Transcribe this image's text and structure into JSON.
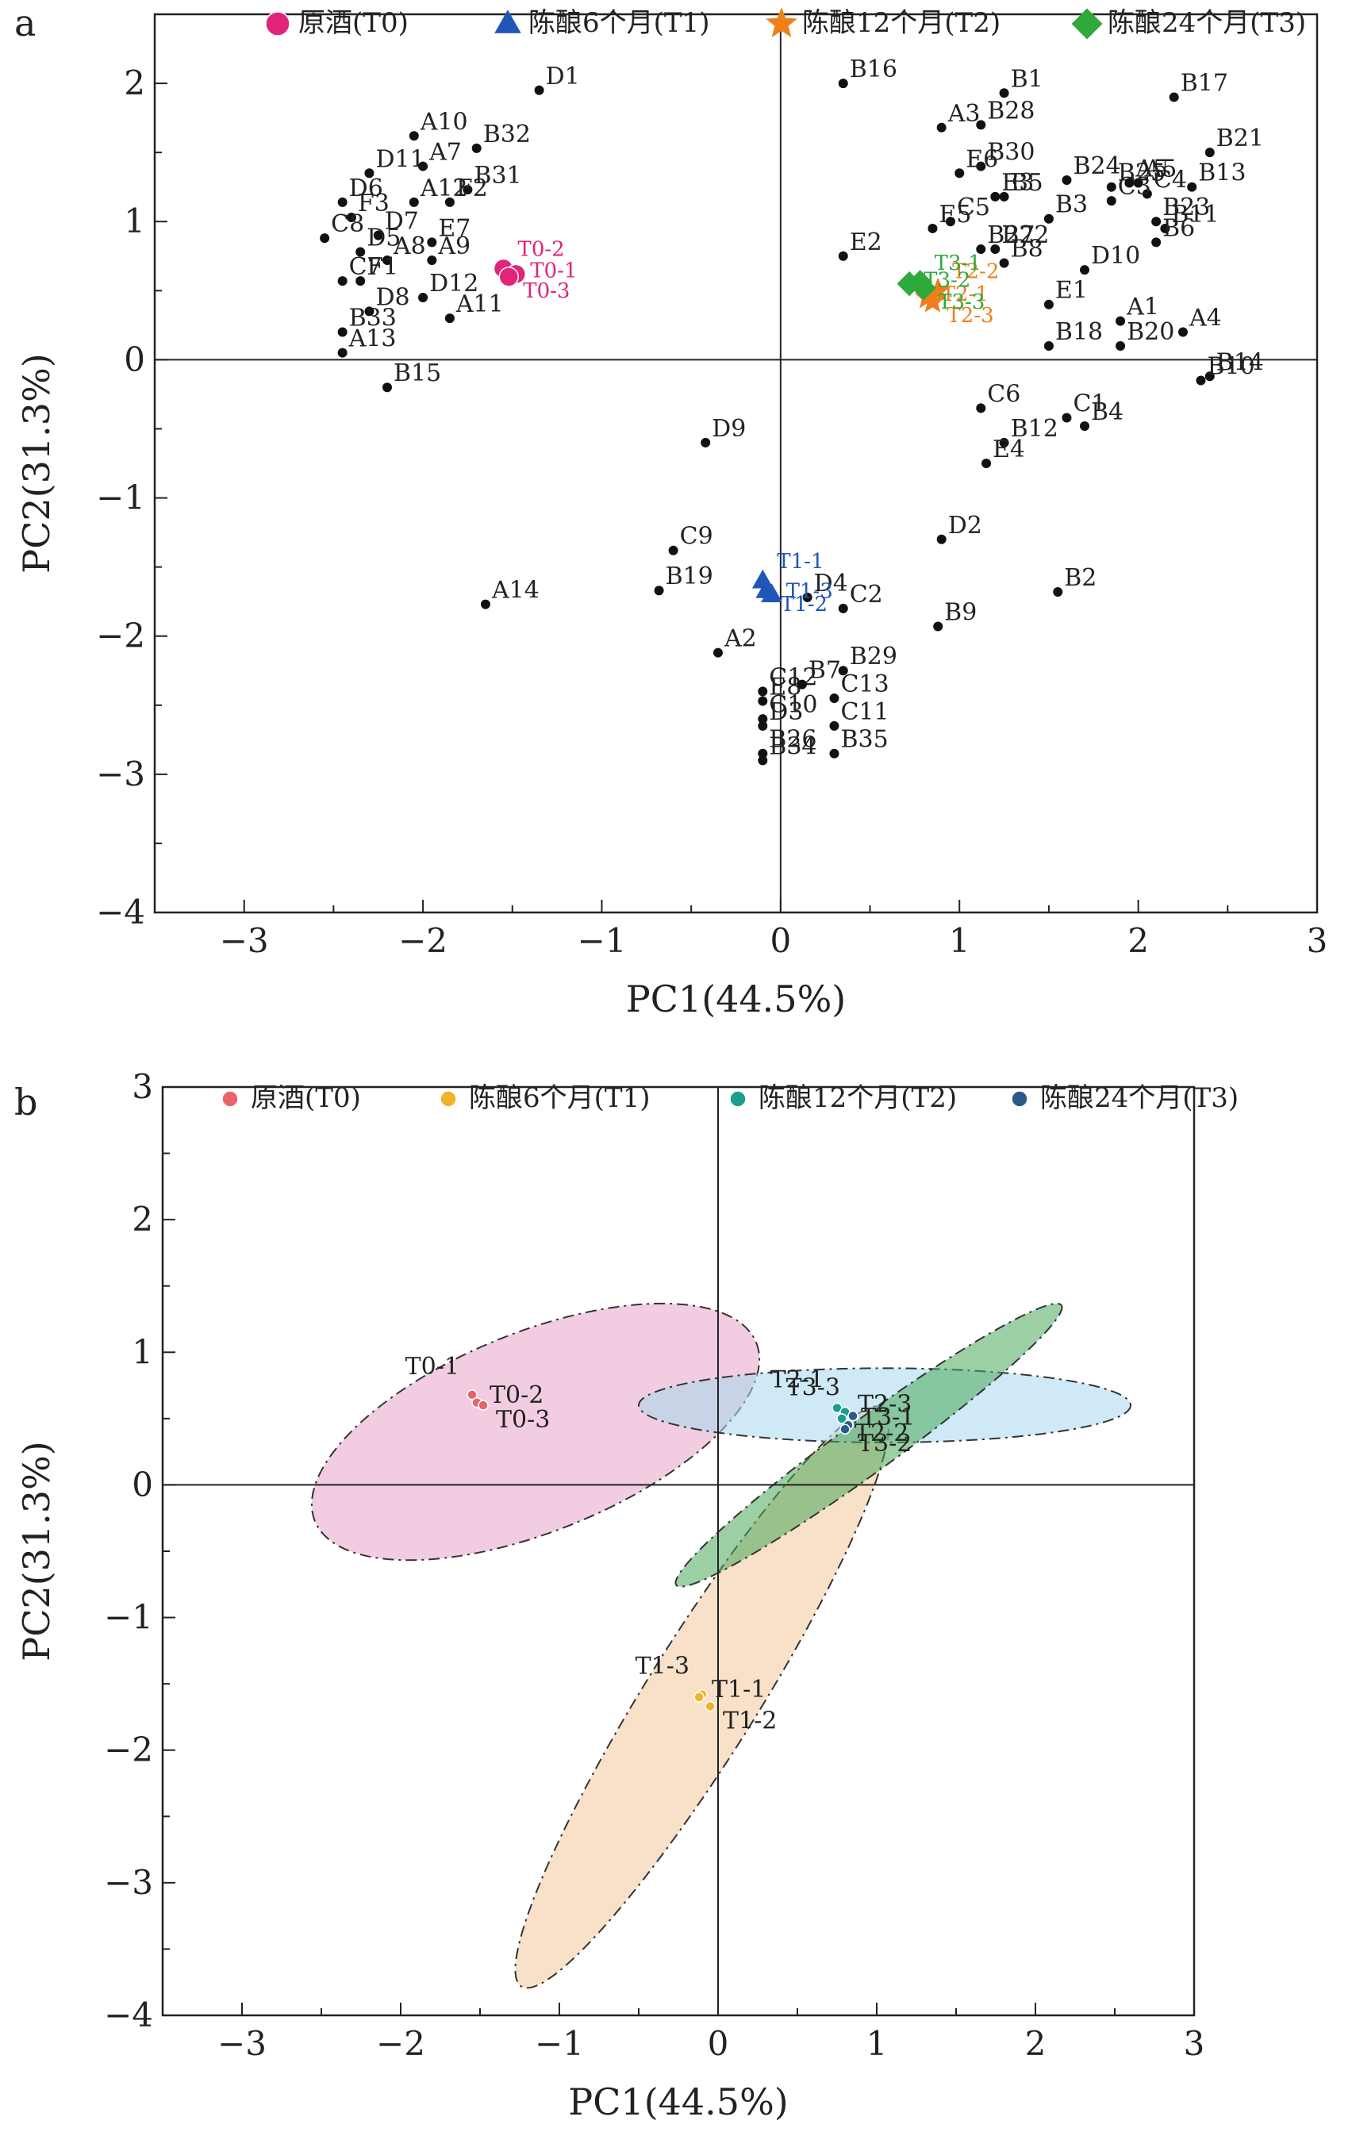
{
  "chart_data": [
    {
      "type": "scatter",
      "panel": "a",
      "xlabel": "PC1(44.5%)",
      "ylabel": "PC2(31.3%)",
      "xlim": [
        -3.5,
        3
      ],
      "ylim": [
        -4,
        2.5
      ],
      "xticks": [
        -3,
        -2,
        -1,
        0,
        1,
        2,
        3
      ],
      "yticks": [
        -4,
        -3,
        -2,
        -1,
        0,
        1,
        2
      ],
      "xtick_labels": [
        "−3",
        "−2",
        "−1",
        "0",
        "1",
        "2",
        "3"
      ],
      "ytick_labels": [
        "−4",
        "−3",
        "−2",
        "−1",
        "0",
        "1",
        "2"
      ],
      "legend": [
        {
          "label": "原酒(T0)",
          "marker": "circle",
          "color": "#e0247a"
        },
        {
          "label": "陈酿6个月(T1)",
          "marker": "triangle",
          "color": "#2156b8"
        },
        {
          "label": "陈酿12个月(T2)",
          "marker": "star",
          "color": "#f07f1a"
        },
        {
          "label": "陈酿24个月(T3)",
          "marker": "diamond",
          "color": "#2eaa3c"
        }
      ],
      "legend_position": "top",
      "variables": [
        {
          "label": "D1",
          "x": -1.35,
          "y": 1.95
        },
        {
          "label": "A10",
          "x": -2.05,
          "y": 1.62
        },
        {
          "label": "A7",
          "x": -2.0,
          "y": 1.4
        },
        {
          "label": "B32",
          "x": -1.7,
          "y": 1.53
        },
        {
          "label": "D11",
          "x": -2.3,
          "y": 1.35
        },
        {
          "label": "B31",
          "x": -1.75,
          "y": 1.23
        },
        {
          "label": "D6",
          "x": -2.45,
          "y": 1.14
        },
        {
          "label": "A12",
          "x": -2.05,
          "y": 1.14
        },
        {
          "label": "F2",
          "x": -1.85,
          "y": 1.14
        },
        {
          "label": "F3",
          "x": -2.4,
          "y": 1.03
        },
        {
          "label": "D7",
          "x": -2.25,
          "y": 0.9
        },
        {
          "label": "E7",
          "x": -1.95,
          "y": 0.85
        },
        {
          "label": "C8",
          "x": -2.55,
          "y": 0.88
        },
        {
          "label": "D5",
          "x": -2.35,
          "y": 0.78
        },
        {
          "label": "A8",
          "x": -2.2,
          "y": 0.72
        },
        {
          "label": "A9",
          "x": -1.95,
          "y": 0.72
        },
        {
          "label": "C7",
          "x": -2.45,
          "y": 0.57
        },
        {
          "label": "F1",
          "x": -2.35,
          "y": 0.57
        },
        {
          "label": "D12",
          "x": -2.0,
          "y": 0.45
        },
        {
          "label": "D8",
          "x": -2.3,
          "y": 0.35
        },
        {
          "label": "A11",
          "x": -1.85,
          "y": 0.3
        },
        {
          "label": "B33",
          "x": -2.45,
          "y": 0.2
        },
        {
          "label": "A13",
          "x": -2.45,
          "y": 0.05
        },
        {
          "label": "B15",
          "x": -2.2,
          "y": -0.2
        },
        {
          "label": "D9",
          "x": -0.42,
          "y": -0.6
        },
        {
          "label": "C9",
          "x": -0.6,
          "y": -1.38
        },
        {
          "label": "B19",
          "x": -0.68,
          "y": -1.67
        },
        {
          "label": "A14",
          "x": -1.65,
          "y": -1.77
        },
        {
          "label": "A2",
          "x": -0.35,
          "y": -2.12
        },
        {
          "label": "C12",
          "x": -0.1,
          "y": -2.4
        },
        {
          "label": "E8",
          "x": -0.1,
          "y": -2.47
        },
        {
          "label": "C10",
          "x": -0.1,
          "y": -2.6
        },
        {
          "label": "D3",
          "x": -0.1,
          "y": -2.65
        },
        {
          "label": "B26",
          "x": -0.1,
          "y": -2.85
        },
        {
          "label": "B34",
          "x": -0.1,
          "y": -2.9
        },
        {
          "label": "D4",
          "x": 0.15,
          "y": -1.72
        },
        {
          "label": "C2",
          "x": 0.35,
          "y": -1.8
        },
        {
          "label": "B7",
          "x": 0.12,
          "y": -2.35
        },
        {
          "label": "B29",
          "x": 0.35,
          "y": -2.25
        },
        {
          "label": "C13",
          "x": 0.3,
          "y": -2.45
        },
        {
          "label": "C11",
          "x": 0.3,
          "y": -2.65
        },
        {
          "label": "B35",
          "x": 0.3,
          "y": -2.85
        },
        {
          "label": "B16",
          "x": 0.35,
          "y": 2.0
        },
        {
          "label": "A3",
          "x": 0.9,
          "y": 1.68
        },
        {
          "label": "B1",
          "x": 1.25,
          "y": 1.93
        },
        {
          "label": "B28",
          "x": 1.12,
          "y": 1.7
        },
        {
          "label": "B30",
          "x": 1.12,
          "y": 1.4
        },
        {
          "label": "E6",
          "x": 1.0,
          "y": 1.35
        },
        {
          "label": "B24",
          "x": 1.6,
          "y": 1.3
        },
        {
          "label": "B25",
          "x": 1.85,
          "y": 1.25
        },
        {
          "label": "A5",
          "x": 1.95,
          "y": 1.28
        },
        {
          "label": "B21",
          "x": 2.4,
          "y": 1.5
        },
        {
          "label": "B17",
          "x": 2.2,
          "y": 1.9
        },
        {
          "label": "A5",
          "x": 2.0,
          "y": 1.28
        },
        {
          "label": "C4",
          "x": 2.05,
          "y": 1.2
        },
        {
          "label": "B13",
          "x": 2.3,
          "y": 1.25
        },
        {
          "label": "E3",
          "x": 1.2,
          "y": 1.18
        },
        {
          "label": "B5",
          "x": 1.25,
          "y": 1.18
        },
        {
          "label": "B3",
          "x": 1.5,
          "y": 1.02
        },
        {
          "label": "C3",
          "x": 1.85,
          "y": 1.15
        },
        {
          "label": "B23",
          "x": 2.1,
          "y": 1.0
        },
        {
          "label": "B11",
          "x": 2.15,
          "y": 0.95
        },
        {
          "label": "E5",
          "x": 0.85,
          "y": 0.95
        },
        {
          "label": "C5",
          "x": 0.95,
          "y": 1.0
        },
        {
          "label": "B22",
          "x": 1.2,
          "y": 0.8
        },
        {
          "label": "B6",
          "x": 2.1,
          "y": 0.85
        },
        {
          "label": "E2",
          "x": 0.35,
          "y": 0.75
        },
        {
          "label": "B27",
          "x": 1.12,
          "y": 0.8
        },
        {
          "label": "B8",
          "x": 1.25,
          "y": 0.7
        },
        {
          "label": "D10",
          "x": 1.7,
          "y": 0.65
        },
        {
          "label": "E1",
          "x": 1.5,
          "y": 0.4
        },
        {
          "label": "A1",
          "x": 1.9,
          "y": 0.28
        },
        {
          "label": "A4",
          "x": 2.25,
          "y": 0.2
        },
        {
          "label": "B20",
          "x": 1.9,
          "y": 0.1
        },
        {
          "label": "B18",
          "x": 1.5,
          "y": 0.1
        },
        {
          "label": "B14",
          "x": 2.4,
          "y": -0.12
        },
        {
          "label": "B10",
          "x": 2.35,
          "y": -0.15
        },
        {
          "label": "C6",
          "x": 1.12,
          "y": -0.35
        },
        {
          "label": "B12",
          "x": 1.25,
          "y": -0.6
        },
        {
          "label": "B4",
          "x": 1.7,
          "y": -0.48
        },
        {
          "label": "E4",
          "x": 1.15,
          "y": -0.75
        },
        {
          "label": "C1",
          "x": 1.6,
          "y": -0.42
        },
        {
          "label": "D2",
          "x": 0.9,
          "y": -1.3
        },
        {
          "label": "B2",
          "x": 1.55,
          "y": -1.68
        },
        {
          "label": "B9",
          "x": 0.88,
          "y": -1.93
        }
      ],
      "samples": [
        {
          "label": "T0-2",
          "group": 0,
          "x": -1.55,
          "y": 0.66
        },
        {
          "label": "T0-1",
          "group": 0,
          "x": -1.48,
          "y": 0.62
        },
        {
          "label": "T0-3",
          "group": 0,
          "x": -1.52,
          "y": 0.6
        },
        {
          "label": "T1-1",
          "group": 1,
          "x": -0.1,
          "y": -1.6
        },
        {
          "label": "T1-3",
          "group": 1,
          "x": -0.05,
          "y": -1.7
        },
        {
          "label": "T1-2",
          "group": 1,
          "x": -0.08,
          "y": -1.67
        },
        {
          "label": "T2-2",
          "group": 2,
          "x": 0.88,
          "y": 0.5
        },
        {
          "label": "T2-1",
          "group": 2,
          "x": 0.82,
          "y": 0.45
        },
        {
          "label": "T2-3",
          "group": 2,
          "x": 0.85,
          "y": 0.42
        },
        {
          "label": "T3-1",
          "group": 3,
          "x": 0.78,
          "y": 0.56
        },
        {
          "label": "T3-2",
          "group": 3,
          "x": 0.72,
          "y": 0.55
        },
        {
          "label": "T3-3",
          "group": 3,
          "x": 0.8,
          "y": 0.52
        }
      ],
      "grid": false
    },
    {
      "type": "scatter",
      "panel": "b",
      "xlabel": "PC1(44.5%)",
      "ylabel": "PC2(31.3%)",
      "xlim": [
        -3.5,
        3
      ],
      "ylim": [
        -4,
        3
      ],
      "xticks": [
        -3,
        -2,
        -1,
        0,
        1,
        2,
        3
      ],
      "yticks": [
        -4,
        -3,
        -2,
        -1,
        0,
        1,
        2,
        3
      ],
      "xtick_labels": [
        "−3",
        "−2",
        "−1",
        "0",
        "1",
        "2",
        "3"
      ],
      "ytick_labels": [
        "−4",
        "−3",
        "−2",
        "−1",
        "0",
        "1",
        "2",
        "3"
      ],
      "legend": [
        {
          "label": "原酒(T0)",
          "color": "#e8646a"
        },
        {
          "label": "陈酿6个月(T1)",
          "color": "#f0b429"
        },
        {
          "label": "陈酿12个月(T2)",
          "color": "#1e9c8e"
        },
        {
          "label": "陈酿24个月(T3)",
          "color": "#2a5a8a"
        }
      ],
      "legend_position": "top",
      "samples": [
        {
          "label": "T0-1",
          "group": 0,
          "x": -1.55,
          "y": 0.68
        },
        {
          "label": "T0-2",
          "group": 0,
          "x": -1.52,
          "y": 0.62
        },
        {
          "label": "T0-3",
          "group": 0,
          "x": -1.48,
          "y": 0.6
        },
        {
          "label": "T1-3",
          "group": 1,
          "x": -0.1,
          "y": -1.58
        },
        {
          "label": "T1-1",
          "group": 1,
          "x": -0.12,
          "y": -1.6
        },
        {
          "label": "T1-2",
          "group": 1,
          "x": -0.05,
          "y": -1.67
        },
        {
          "label": "T2-1",
          "group": 2,
          "x": 0.75,
          "y": 0.58
        },
        {
          "label": "T2-3",
          "group": 2,
          "x": 0.8,
          "y": 0.55
        },
        {
          "label": "T2-2",
          "group": 2,
          "x": 0.78,
          "y": 0.5
        },
        {
          "label": "T3-3",
          "group": 3,
          "x": 0.85,
          "y": 0.52
        },
        {
          "label": "T3-1",
          "group": 3,
          "x": 0.82,
          "y": 0.45
        },
        {
          "label": "T3-2",
          "group": 3,
          "x": 0.8,
          "y": 0.42
        }
      ],
      "ellipses": [
        {
          "group": 0,
          "color": "#e8a4c8",
          "cx": -1.15,
          "cy": 0.4,
          "rx": 1.5,
          "ry": 0.75,
          "angle": -22
        },
        {
          "group": 1,
          "color": "#f2c89a",
          "cx": -0.1,
          "cy": -1.6,
          "rx": 2.15,
          "ry": 0.42,
          "angle": -58
        },
        {
          "group": 2,
          "color": "#a8d8ee",
          "cx": 1.05,
          "cy": 0.6,
          "rx": 1.55,
          "ry": 0.28,
          "angle": 0
        },
        {
          "group": 3,
          "color": "#4aa85a",
          "cx": 0.95,
          "cy": 0.3,
          "rx": 1.5,
          "ry": 0.2,
          "angle": -36
        }
      ],
      "grid": false
    }
  ]
}
